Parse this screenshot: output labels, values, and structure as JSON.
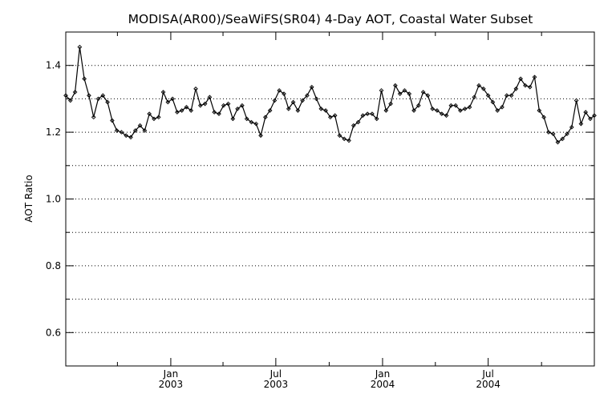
{
  "chart_data": {
    "type": "line",
    "title": "MODISA(AR00)/SeaWiFS(SR04) 4-Day AOT, Coastal Water Subset",
    "xlabel": "",
    "ylabel": "AOT Ratio",
    "xlim": [
      "2002-07-04",
      "2004-12-31"
    ],
    "ylim": [
      0.5,
      1.5
    ],
    "y_ticks": [
      0.6,
      0.8,
      1.0,
      1.2,
      1.4
    ],
    "y_gridlines": [
      0.6,
      0.7,
      0.8,
      0.9,
      1.0,
      1.1,
      1.2,
      1.3,
      1.4
    ],
    "grid": "horizontal dotted",
    "x_ticks": [
      {
        "date": "2003-01-01",
        "label": [
          "Jan",
          "2003"
        ]
      },
      {
        "date": "2003-07-01",
        "label": [
          "Jul",
          "2003"
        ]
      },
      {
        "date": "2004-01-01",
        "label": [
          "Jan",
          "2004"
        ]
      },
      {
        "date": "2004-07-01",
        "label": [
          "Jul",
          "2004"
        ]
      }
    ],
    "x_minor_ticks": [
      "2002-10-01",
      "2003-04-01",
      "2003-10-01",
      "2004-04-01",
      "2004-10-01"
    ],
    "series": [
      {
        "name": "",
        "color": "#000000",
        "x": [
          "2002-07-04",
          "2002-07-12",
          "2002-07-20",
          "2002-07-28",
          "2002-08-05",
          "2002-08-13",
          "2002-08-21",
          "2002-08-29",
          "2002-09-06",
          "2002-09-14",
          "2002-09-22",
          "2002-09-30",
          "2002-10-08",
          "2002-10-16",
          "2002-10-24",
          "2002-11-01",
          "2002-11-09",
          "2002-11-17",
          "2002-11-25",
          "2002-12-03",
          "2002-12-11",
          "2002-12-19",
          "2002-12-27",
          "2003-01-04",
          "2003-01-12",
          "2003-01-20",
          "2003-01-28",
          "2003-02-05",
          "2003-02-13",
          "2003-02-21",
          "2003-03-01",
          "2003-03-09",
          "2003-03-17",
          "2003-03-25",
          "2003-04-02",
          "2003-04-10",
          "2003-04-18",
          "2003-04-26",
          "2003-05-04",
          "2003-05-12",
          "2003-05-20",
          "2003-05-28",
          "2003-06-05",
          "2003-06-13",
          "2003-06-21",
          "2003-06-29",
          "2003-07-07",
          "2003-07-15",
          "2003-07-23",
          "2003-07-31",
          "2003-08-08",
          "2003-08-16",
          "2003-08-24",
          "2003-09-01",
          "2003-09-09",
          "2003-09-17",
          "2003-09-25",
          "2003-10-03",
          "2003-10-11",
          "2003-10-19",
          "2003-10-27",
          "2003-11-04",
          "2003-11-12",
          "2003-11-20",
          "2003-11-28",
          "2003-12-06",
          "2003-12-14",
          "2003-12-22",
          "2003-12-30",
          "2004-01-07",
          "2004-01-15",
          "2004-01-23",
          "2004-01-31",
          "2004-02-08",
          "2004-02-16",
          "2004-02-24",
          "2004-03-03",
          "2004-03-11",
          "2004-03-19",
          "2004-03-27",
          "2004-04-04",
          "2004-04-12",
          "2004-04-20",
          "2004-04-28",
          "2004-05-06",
          "2004-05-14",
          "2004-05-22",
          "2004-05-30",
          "2004-06-07",
          "2004-06-15",
          "2004-06-23",
          "2004-07-01",
          "2004-07-09",
          "2004-07-17",
          "2004-07-25",
          "2004-08-02",
          "2004-08-10",
          "2004-08-18",
          "2004-08-26",
          "2004-09-03",
          "2004-09-11",
          "2004-09-19",
          "2004-09-27",
          "2004-10-05",
          "2004-10-13",
          "2004-10-21",
          "2004-10-29",
          "2004-11-06",
          "2004-11-14",
          "2004-11-22",
          "2004-11-30",
          "2004-12-08",
          "2004-12-16",
          "2004-12-24",
          "2004-12-31"
        ],
        "y": [
          1.31,
          1.295,
          1.32,
          1.455,
          1.36,
          1.31,
          1.245,
          1.3,
          1.31,
          1.29,
          1.235,
          1.205,
          1.2,
          1.19,
          1.185,
          1.205,
          1.22,
          1.205,
          1.255,
          1.24,
          1.245,
          1.32,
          1.29,
          1.3,
          1.26,
          1.265,
          1.275,
          1.265,
          1.33,
          1.28,
          1.285,
          1.305,
          1.26,
          1.255,
          1.28,
          1.285,
          1.24,
          1.27,
          1.28,
          1.24,
          1.23,
          1.225,
          1.19,
          1.245,
          1.265,
          1.295,
          1.325,
          1.315,
          1.27,
          1.29,
          1.265,
          1.295,
          1.31,
          1.335,
          1.3,
          1.27,
          1.265,
          1.245,
          1.25,
          1.19,
          1.18,
          1.175,
          1.22,
          1.23,
          1.25,
          1.255,
          1.255,
          1.24,
          1.325,
          1.265,
          1.285,
          1.34,
          1.315,
          1.325,
          1.315,
          1.265,
          1.28,
          1.32,
          1.31,
          1.27,
          1.265,
          1.255,
          1.25,
          1.28,
          1.28,
          1.265,
          1.27,
          1.275,
          1.305,
          1.34,
          1.33,
          1.31,
          1.29,
          1.265,
          1.275,
          1.31,
          1.31,
          1.33,
          1.36,
          1.34,
          1.335,
          1.365,
          1.265,
          1.245,
          1.2,
          1.195,
          1.17,
          1.18,
          1.195,
          1.215,
          1.295,
          1.225,
          1.26,
          1.24,
          1.25
        ]
      }
    ]
  }
}
